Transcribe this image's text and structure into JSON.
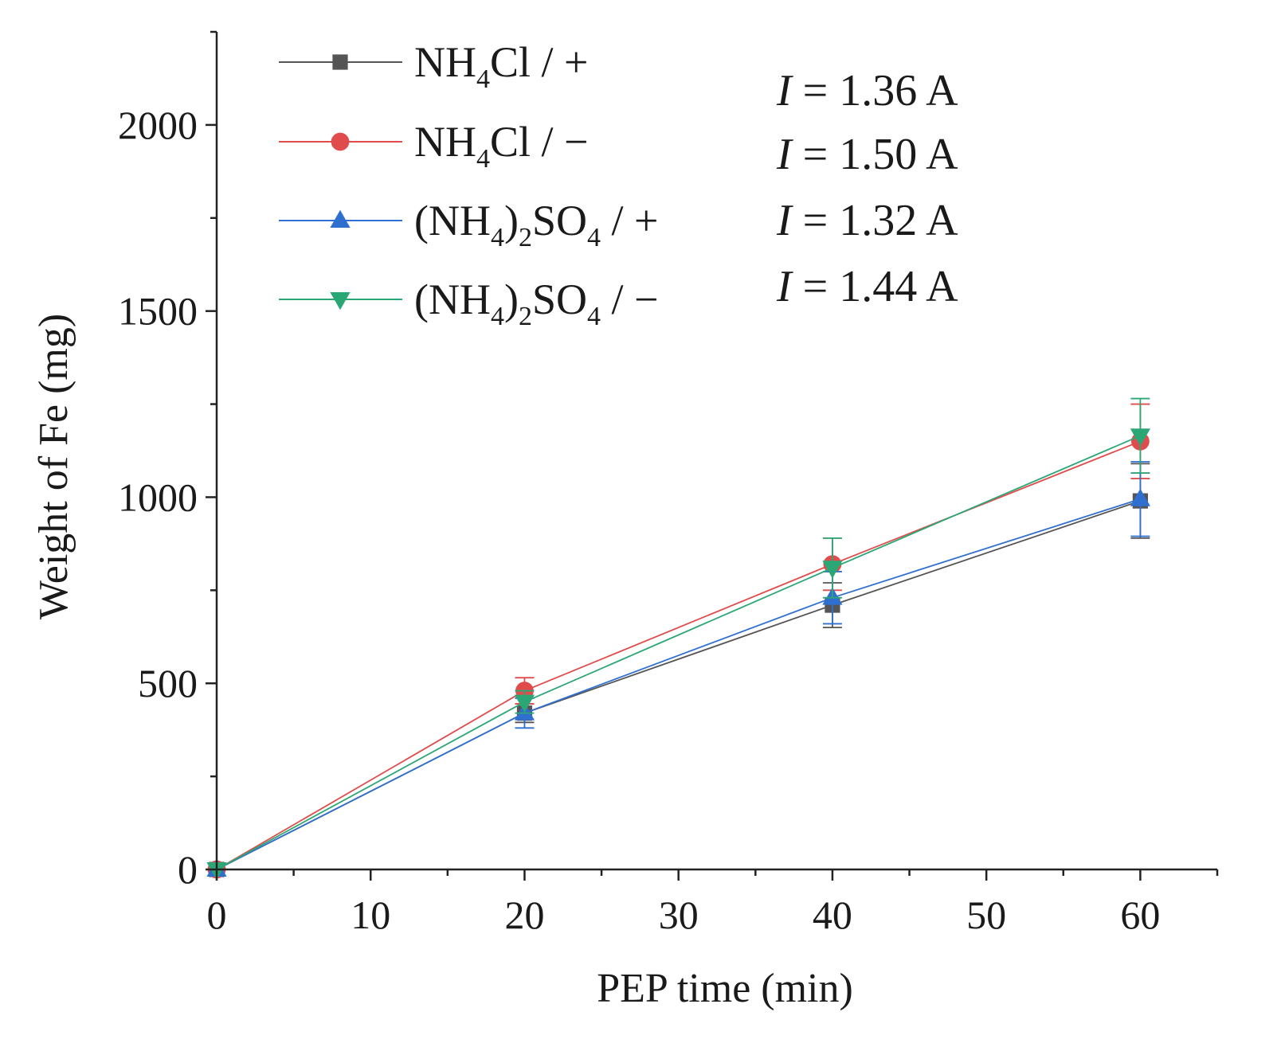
{
  "chart_data": {
    "type": "line",
    "title": "",
    "xlabel": "PEP time (min)",
    "ylabel": "Weight of Fe (mg)",
    "xlim": [
      0,
      65
    ],
    "ylim": [
      0,
      2250
    ],
    "xticks": [
      0,
      10,
      20,
      30,
      40,
      50,
      60
    ],
    "yticks": [
      0,
      500,
      1000,
      1500,
      2000
    ],
    "x": [
      0,
      20,
      40,
      60
    ],
    "legend_position": "top-left",
    "series": [
      {
        "name": "NH4Cl / +",
        "label_parts": [
          {
            "t": "NH"
          },
          {
            "t": "4",
            "sub": true
          },
          {
            "t": "Cl / +"
          }
        ],
        "marker": "square",
        "color": "#555555",
        "values": [
          0,
          420,
          710,
          990
        ],
        "errors": [
          0,
          25,
          60,
          100
        ]
      },
      {
        "name": "NH4Cl / −",
        "label_parts": [
          {
            "t": "NH"
          },
          {
            "t": "4",
            "sub": true
          },
          {
            "t": "Cl / −"
          }
        ],
        "marker": "circle",
        "color": "#e04c4c",
        "values": [
          0,
          480,
          820,
          1150
        ],
        "errors": [
          0,
          35,
          70,
          100
        ]
      },
      {
        "name": "(NH4)2SO4 / +",
        "label_parts": [
          {
            "t": "(NH"
          },
          {
            "t": "4",
            "sub": true
          },
          {
            "t": ")"
          },
          {
            "t": "2",
            "sub": true
          },
          {
            "t": "SO"
          },
          {
            "t": "4",
            "sub": true
          },
          {
            "t": " / +"
          }
        ],
        "marker": "triangle-up",
        "color": "#2f6fd0",
        "values": [
          0,
          420,
          730,
          995
        ],
        "errors": [
          0,
          40,
          70,
          100
        ]
      },
      {
        "name": "(NH4)2SO4 / −",
        "label_parts": [
          {
            "t": "(NH"
          },
          {
            "t": "4",
            "sub": true
          },
          {
            "t": ")"
          },
          {
            "t": "2",
            "sub": true
          },
          {
            "t": "SO"
          },
          {
            "t": "4",
            "sub": true
          },
          {
            "t": " / −"
          }
        ],
        "marker": "triangle-down",
        "color": "#2aa775",
        "values": [
          0,
          450,
          810,
          1165
        ],
        "errors": [
          0,
          30,
          80,
          100
        ]
      }
    ],
    "annotations": [
      {
        "var": "I",
        "text": " = 1.36 A"
      },
      {
        "var": "I",
        "text": " = 1.50 A"
      },
      {
        "var": "I",
        "text": " = 1.32 A"
      },
      {
        "var": "I",
        "text": " = 1.44 A"
      }
    ]
  }
}
